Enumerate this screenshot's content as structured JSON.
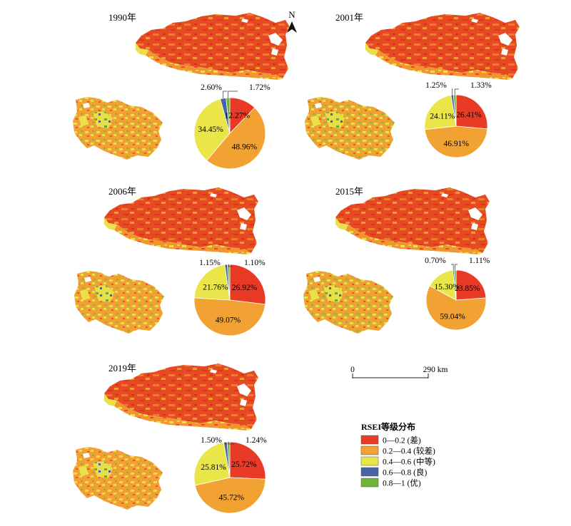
{
  "colors": {
    "poor": "#e83a25",
    "fair": "#f2a232",
    "moderate": "#eae64a",
    "good": "#4a62a4",
    "excellent": "#6fb43a"
  },
  "panels": [
    {
      "year_label": "1990年",
      "values": [
        12.27,
        48.96,
        34.45,
        2.6,
        1.72
      ],
      "labels": [
        "12.27%",
        "48.96%",
        "34.45%",
        "2.60%",
        "1.72%"
      ]
    },
    {
      "year_label": "2001年",
      "values": [
        26.41,
        46.91,
        24.11,
        1.25,
        1.33
      ],
      "labels": [
        "26.41%",
        "46.91%",
        "24.11%",
        "1.25%",
        "1.33%"
      ]
    },
    {
      "year_label": "2006年",
      "values": [
        26.92,
        49.07,
        21.76,
        1.15,
        1.1
      ],
      "labels": [
        "26.92%",
        "49.07%",
        "21.76%",
        "1.15%",
        "1.10%"
      ]
    },
    {
      "year_label": "2015年",
      "values": [
        23.85,
        59.04,
        15.3,
        0.7,
        1.11
      ],
      "labels": [
        "23.85%",
        "59.04%",
        "15.30%",
        "0.70%",
        "1.11%"
      ]
    },
    {
      "year_label": "2019年",
      "values": [
        25.72,
        45.72,
        25.81,
        1.5,
        1.24
      ],
      "labels": [
        "25.72%",
        "45.72%",
        "25.81%",
        "1.50%",
        "1.24%"
      ]
    }
  ],
  "north_arrow": {
    "label": "N"
  },
  "scale_bar": {
    "zero_label": "0",
    "end_label": "290 km"
  },
  "legend": {
    "title": "RSEI等级分布",
    "items": [
      {
        "label": "0—0.2 (差)",
        "color_key": "poor"
      },
      {
        "label": "0.2—0.4 (较差)",
        "color_key": "fair"
      },
      {
        "label": "0.4—0.6 (中等)",
        "color_key": "moderate"
      },
      {
        "label": "0.6—0.8 (良)",
        "color_key": "good"
      },
      {
        "label": "0.8—1 (优)",
        "color_key": "excellent"
      }
    ]
  },
  "chart_data": [
    {
      "type": "pie",
      "title": "1990年",
      "categories": [
        "0—0.2 (差)",
        "0.2—0.4 (较差)",
        "0.4—0.6 (中等)",
        "0.6—0.8 (良)",
        "0.8—1 (优)"
      ],
      "values": [
        12.27,
        48.96,
        34.45,
        2.6,
        1.72
      ]
    },
    {
      "type": "pie",
      "title": "2001年",
      "categories": [
        "0—0.2 (差)",
        "0.2—0.4 (较差)",
        "0.4—0.6 (中等)",
        "0.6—0.8 (良)",
        "0.8—1 (优)"
      ],
      "values": [
        26.41,
        46.91,
        24.11,
        1.25,
        1.33
      ]
    },
    {
      "type": "pie",
      "title": "2006年",
      "categories": [
        "0—0.2 (差)",
        "0.2—0.4 (较差)",
        "0.4—0.6 (中等)",
        "0.6—0.8 (良)",
        "0.8—1 (优)"
      ],
      "values": [
        26.92,
        49.07,
        21.76,
        1.15,
        1.1
      ]
    },
    {
      "type": "pie",
      "title": "2015年",
      "categories": [
        "0—0.2 (差)",
        "0.2—0.4 (较差)",
        "0.4—0.6 (中等)",
        "0.6—0.8 (良)",
        "0.8—1 (优)"
      ],
      "values": [
        23.85,
        59.04,
        15.3,
        0.7,
        1.11
      ]
    },
    {
      "type": "pie",
      "title": "2019年",
      "categories": [
        "0—0.2 (差)",
        "0.2—0.4 (较差)",
        "0.4—0.6 (中等)",
        "0.6—0.8 (良)",
        "0.8—1 (优)"
      ],
      "values": [
        25.72,
        45.72,
        25.81,
        1.5,
        1.24
      ]
    }
  ]
}
